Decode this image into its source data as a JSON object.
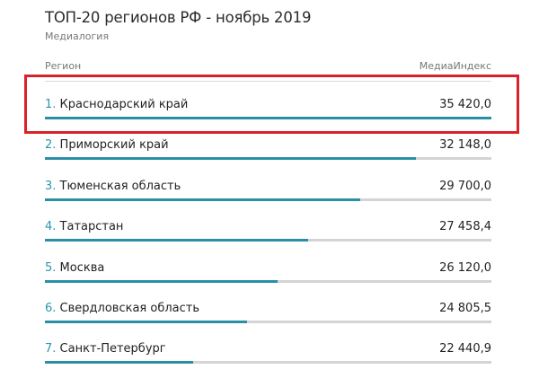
{
  "header": {
    "title": "ТОП-20 регионов РФ - ноябрь 2019",
    "subtitle": "Медиалогия"
  },
  "columns": {
    "region": "Регион",
    "index": "МедиаИндекс"
  },
  "colors": {
    "bar": "#2a8fa6",
    "track": "#d4d4d4",
    "rank": "#2b95ad",
    "highlight": "#d9222a"
  },
  "rows": [
    {
      "rank": "1.",
      "region": "Краснодарский край",
      "value": "35 420,0",
      "num": 35420.0
    },
    {
      "rank": "2.",
      "region": "Приморский край",
      "value": "32 148,0",
      "num": 32148.0
    },
    {
      "rank": "3.",
      "region": "Тюменская область",
      "value": "29 700,0",
      "num": 29700.0
    },
    {
      "rank": "4.",
      "region": "Татарстан",
      "value": "27 458,4",
      "num": 27458.4
    },
    {
      "rank": "5.",
      "region": "Москва",
      "value": "26 120,0",
      "num": 26120.0
    },
    {
      "rank": "6.",
      "region": "Свердловская область",
      "value": "24 805,5",
      "num": 24805.5
    },
    {
      "rank": "7.",
      "region": "Санкт-Петербург",
      "value": "22 440,9",
      "num": 22440.9
    }
  ],
  "highlighted_row": 0,
  "chart_data": {
    "type": "bar",
    "orientation": "horizontal",
    "title": "ТОП-20 регионов РФ - ноябрь 2019",
    "subtitle": "Медиалогия",
    "xlabel": "МедиаИндекс",
    "ylabel": "Регион",
    "categories": [
      "Краснодарский край",
      "Приморский край",
      "Тюменская область",
      "Татарстан",
      "Москва",
      "Свердловская область",
      "Санкт-Петербург"
    ],
    "values": [
      35420.0,
      32148.0,
      29700.0,
      27458.4,
      26120.0,
      24805.5,
      22440.9
    ],
    "xlim": [
      0,
      35420.0
    ],
    "grid": false,
    "legend": "none",
    "annotations": [
      "Red box highlighting row 1: Краснодарский край"
    ]
  }
}
